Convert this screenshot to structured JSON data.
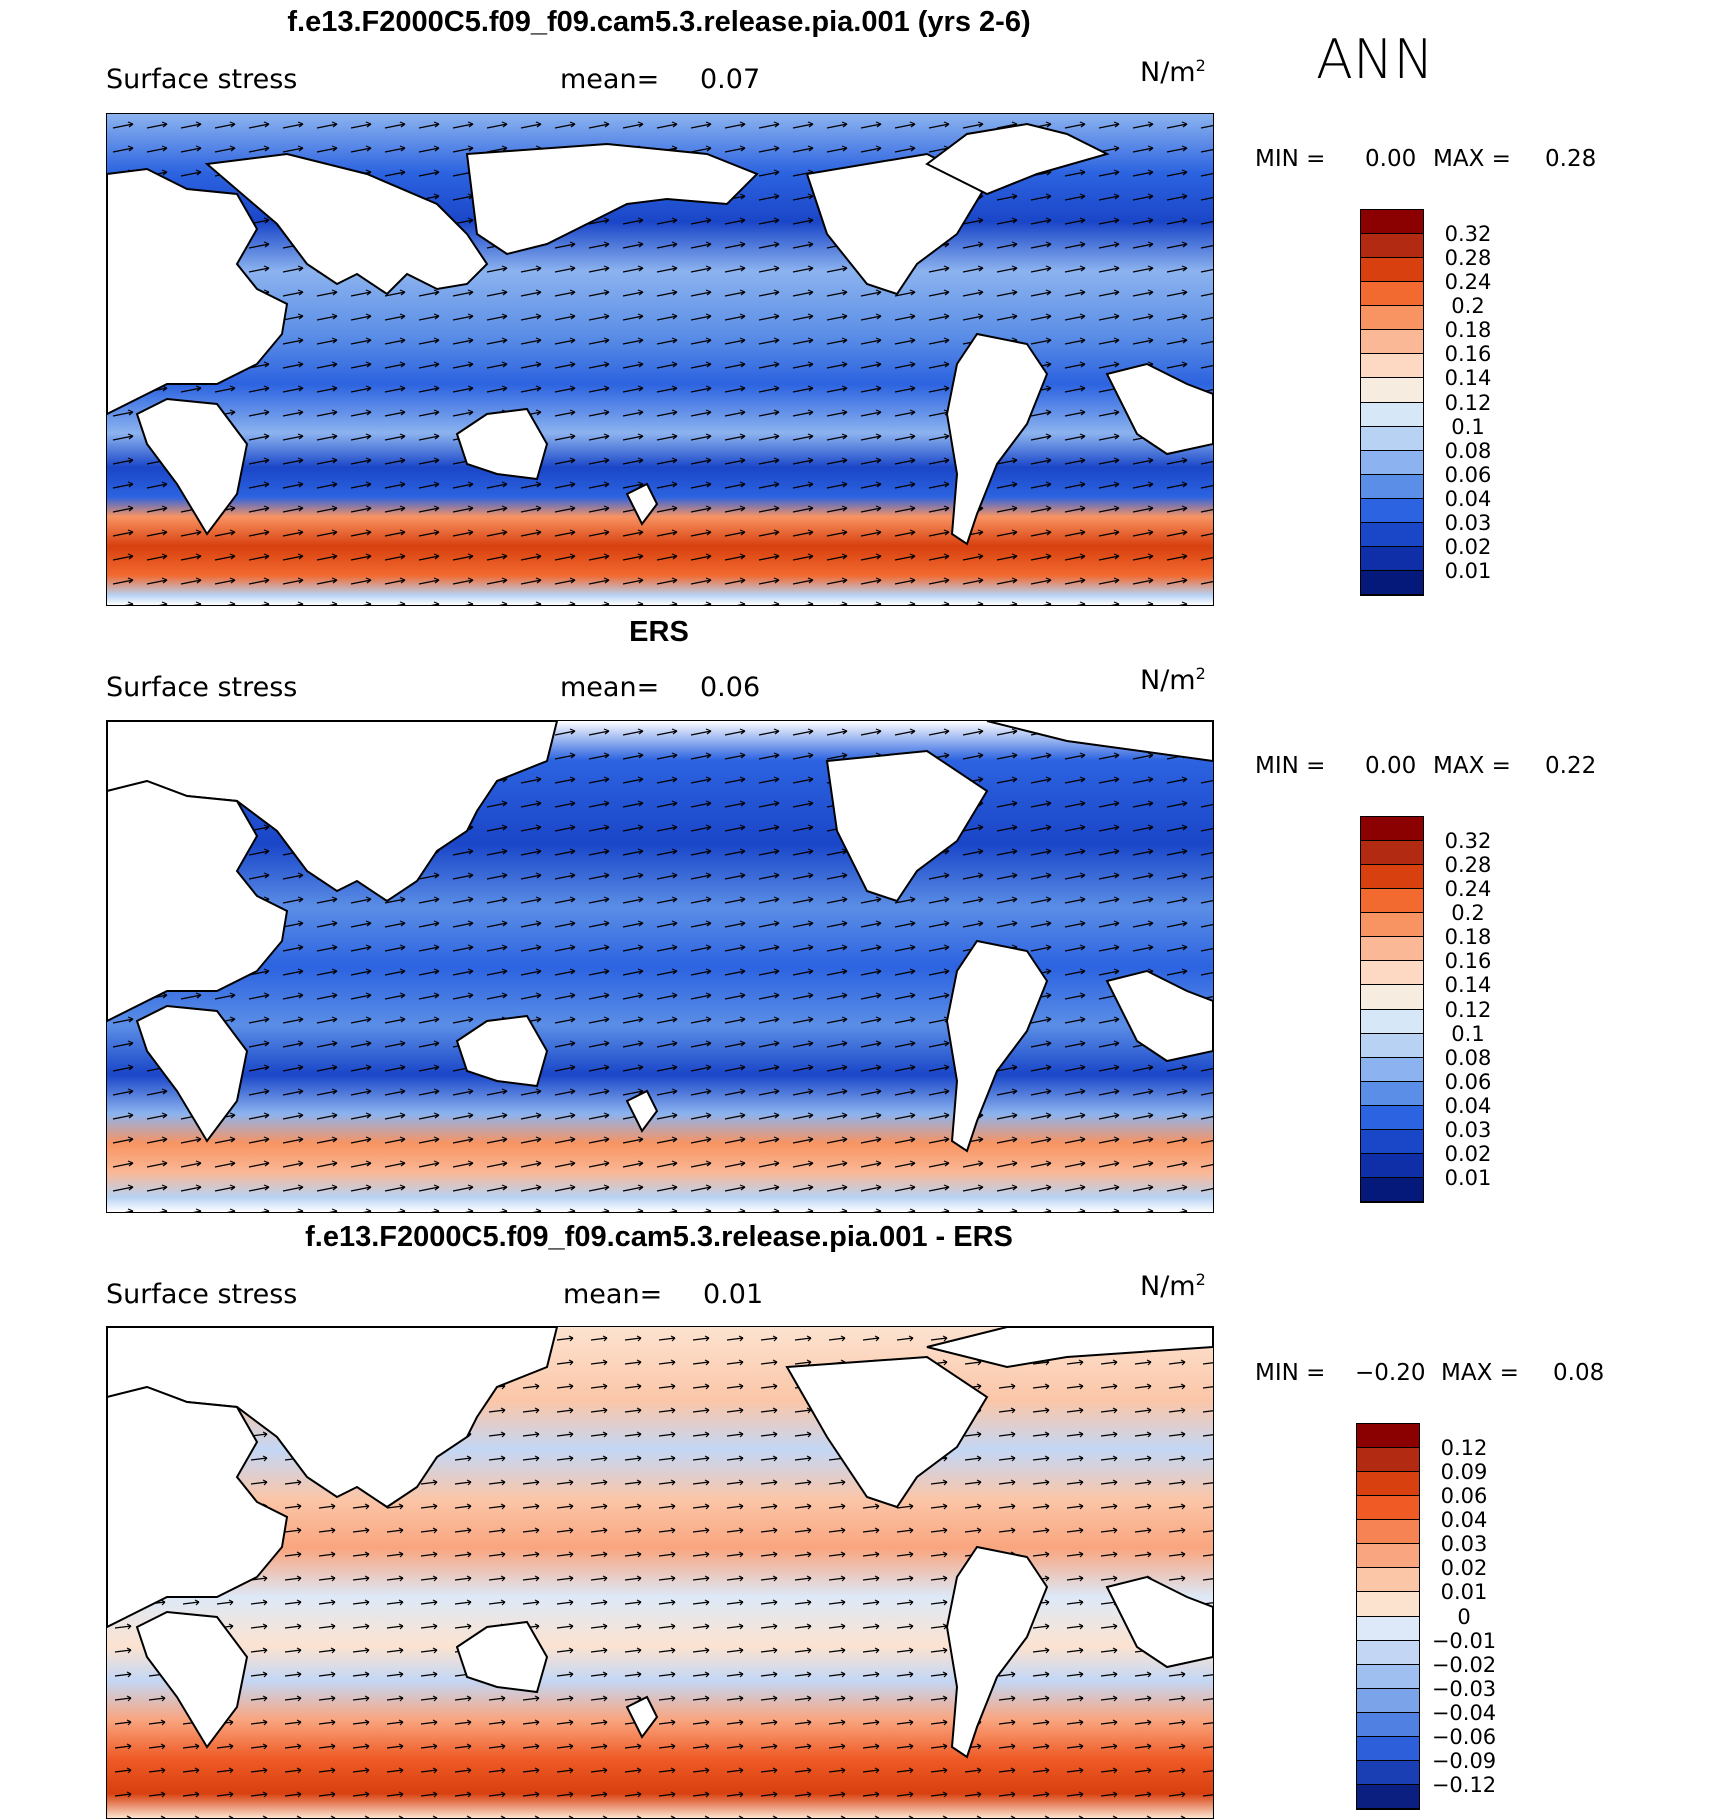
{
  "season": "ANN",
  "units_base": "N/m",
  "units_exp": "2",
  "panels": [
    {
      "title": "f.e13.F2000C5.f09_f09.cam5.3.release.pia.001 (yrs 2-6)",
      "variable": "Surface stress",
      "mean_label": "mean=",
      "mean_value": "0.07",
      "min_label": "MIN =",
      "min_value": "0.00",
      "max_label": "MAX =",
      "max_value": "0.28",
      "colorbar_kind": "abs",
      "colorbar_ticks": [
        "0.32",
        "0.28",
        "0.24",
        "0.2",
        "0.18",
        "0.16",
        "0.14",
        "0.12",
        "0.1",
        "0.08",
        "0.06",
        "0.04",
        "0.03",
        "0.02",
        "0.01"
      ]
    },
    {
      "title": "ERS",
      "variable": "Surface stress",
      "mean_label": "mean=",
      "mean_value": "0.06",
      "min_label": "MIN =",
      "min_value": "0.00",
      "max_label": "MAX =",
      "max_value": "0.22",
      "colorbar_kind": "abs",
      "colorbar_ticks": [
        "0.32",
        "0.28",
        "0.24",
        "0.2",
        "0.18",
        "0.16",
        "0.14",
        "0.12",
        "0.1",
        "0.08",
        "0.06",
        "0.04",
        "0.03",
        "0.02",
        "0.01"
      ]
    },
    {
      "title": "f.e13.F2000C5.f09_f09.cam5.3.release.pia.001 - ERS",
      "variable": "Surface stress",
      "mean_label": "mean=",
      "mean_value": "0.01",
      "min_label": "MIN =",
      "min_value": "−0.20",
      "max_label": "MAX =",
      "max_value": "0.08",
      "colorbar_kind": "diff",
      "colorbar_ticks": [
        "0.12",
        "0.09",
        "0.06",
        "0.04",
        "0.03",
        "0.02",
        "0.01",
        "0",
        "−0.01",
        "−0.02",
        "−0.03",
        "−0.04",
        "−0.06",
        "−0.09",
        "−0.12"
      ]
    }
  ],
  "colors": {
    "abs": [
      "#8b0000",
      "#b22a12",
      "#d8400f",
      "#f26a30",
      "#f89462",
      "#fab897",
      "#fdd8c3",
      "#f6ecdf",
      "#d6e8f7",
      "#b7d2f3",
      "#8cb3ef",
      "#5b8ee6",
      "#2c63e0",
      "#1a46c8",
      "#0f2fa8",
      "#04197a"
    ],
    "diff": [
      "#8b0000",
      "#b22a12",
      "#d8400f",
      "#ef5a25",
      "#f58354",
      "#f9a57f",
      "#fbc6a8",
      "#fce3d0",
      "#dde9f8",
      "#c3d7f5",
      "#9fbff0",
      "#7aa3ea",
      "#4f80e2",
      "#2c5fd9",
      "#1a3fb5",
      "#0a1f80"
    ]
  }
}
